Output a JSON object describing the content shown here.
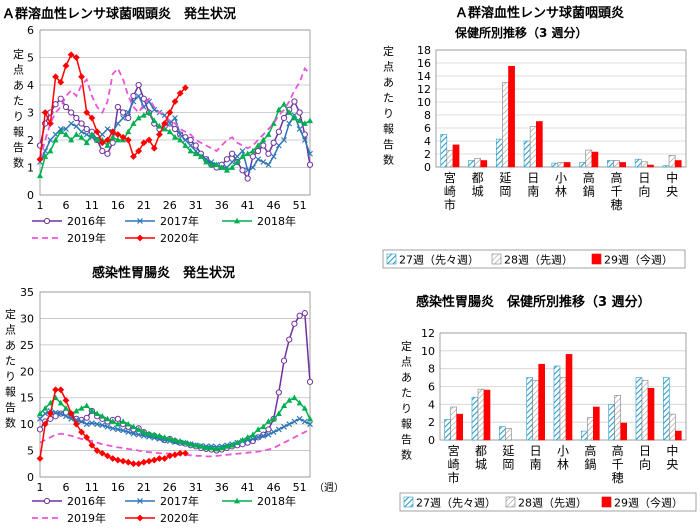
{
  "chart_data": [
    {
      "id": "strep_weekly",
      "type": "line",
      "title": "Ａ群溶血性レンサ球菌咽頭炎　発生状況",
      "ylabel": "定点あたり報告数",
      "xlabel": "",
      "x_ticks": [
        "1",
        "6",
        "11",
        "16",
        "21",
        "26",
        "31",
        "36",
        "41",
        "46",
        "51"
      ],
      "y_ticks": [
        "0",
        "1",
        "2",
        "3",
        "4",
        "5",
        "6"
      ],
      "ylim": [
        0,
        6
      ],
      "xlim": [
        1,
        53
      ],
      "grid": true,
      "legend_position": "bottom",
      "series": [
        {
          "name": "2016年",
          "color": "#7030A0",
          "style": "solid",
          "marker": "circle-open",
          "values": [
            1.8,
            2.6,
            3.0,
            3.3,
            3.5,
            3.2,
            3.0,
            2.8,
            2.6,
            2.4,
            2.3,
            2.0,
            1.6,
            1.5,
            1.9,
            3.2,
            3.0,
            2.8,
            3.6,
            4.0,
            3.5,
            3.0,
            2.6,
            2.4,
            2.5,
            2.6,
            2.4,
            2.2,
            2.1,
            2.0,
            1.8,
            1.5,
            1.3,
            1.1,
            1.0,
            1.1,
            1.3,
            1.5,
            1.2,
            0.9,
            0.6,
            1.4,
            1.6,
            1.8,
            1.5,
            1.9,
            2.3,
            2.8,
            3.1,
            3.4,
            3.0,
            2.2,
            1.1
          ]
        },
        {
          "name": "2017年",
          "color": "#2E75B6",
          "style": "solid",
          "marker": "x",
          "values": [
            1.2,
            1.6,
            2.0,
            2.2,
            2.4,
            2.4,
            2.6,
            2.5,
            2.3,
            2.2,
            2.1,
            2.0,
            2.2,
            2.4,
            2.3,
            2.6,
            2.8,
            3.0,
            3.4,
            3.6,
            3.2,
            3.4,
            3.1,
            3.0,
            2.9,
            2.6,
            2.8,
            2.2,
            2.0,
            1.8,
            1.6,
            1.4,
            1.3,
            1.2,
            1.1,
            1.0,
            1.0,
            1.2,
            1.4,
            1.6,
            0.9,
            1.0,
            1.3,
            1.2,
            1.1,
            1.4,
            1.8,
            2.0,
            2.6,
            2.9,
            2.4,
            2.0,
            1.5
          ]
        },
        {
          "name": "2018年",
          "color": "#00B050",
          "style": "solid",
          "marker": "triangle",
          "values": [
            0.7,
            1.4,
            1.6,
            2.0,
            2.3,
            2.2,
            2.0,
            2.2,
            2.1,
            1.9,
            2.2,
            2.0,
            2.0,
            1.8,
            2.1,
            2.0,
            2.0,
            2.3,
            2.6,
            2.8,
            2.9,
            3.0,
            2.7,
            2.5,
            2.4,
            2.3,
            2.1,
            2.0,
            1.8,
            1.6,
            1.5,
            1.4,
            1.2,
            1.1,
            1.1,
            1.0,
            0.9,
            1.0,
            1.2,
            1.4,
            1.5,
            1.6,
            1.8,
            2.0,
            2.2,
            2.6,
            3.1,
            3.3,
            3.0,
            2.8,
            2.7,
            2.6,
            2.7
          ]
        },
        {
          "name": "2019年",
          "color": "#E955D8",
          "style": "dashed",
          "marker": "none",
          "values": [
            1.3,
            2.0,
            2.6,
            3.0,
            3.2,
            3.6,
            3.8,
            3.6,
            4.0,
            4.2,
            3.6,
            3.2,
            3.0,
            3.4,
            4.4,
            4.6,
            4.2,
            3.6,
            3.2,
            3.0,
            3.3,
            3.5,
            3.2,
            3.0,
            2.9,
            2.7,
            2.6,
            2.4,
            2.3,
            2.2,
            2.0,
            1.9,
            1.8,
            1.7,
            1.6,
            1.8,
            2.0,
            2.1,
            1.9,
            1.8,
            1.7,
            1.8,
            2.0,
            2.2,
            2.4,
            2.6,
            2.9,
            3.1,
            3.4,
            3.8,
            4.1,
            4.6,
            4.4
          ]
        },
        {
          "name": "2020年",
          "color": "#FF0000",
          "style": "solid",
          "marker": "diamond",
          "values": [
            1.3,
            3.0,
            2.6,
            4.3,
            4.1,
            4.7,
            5.1,
            5.0,
            4.3,
            3.0,
            2.8,
            2.3,
            1.9,
            2.0,
            2.3,
            2.2,
            2.1,
            2.0,
            1.4,
            1.6,
            1.9,
            2.0,
            1.7,
            2.2,
            2.6,
            3.0,
            3.4,
            3.7,
            3.9
          ]
        }
      ]
    },
    {
      "id": "strep_district",
      "type": "bar",
      "title_line1": "Ａ群溶血性レンサ球菌咽頭炎",
      "title_line2": "保健所別推移（3 週分）",
      "ylabel": "定点あたり報告数",
      "ylim": [
        0,
        18
      ],
      "y_ticks": [
        "0",
        "2",
        "4",
        "6",
        "8",
        "10",
        "12",
        "14",
        "16",
        "18"
      ],
      "grid": true,
      "legend_position": "bottom",
      "categories": [
        "宮崎市",
        "都城",
        "延岡",
        "日南",
        "小林",
        "高鍋",
        "高千穂",
        "日向",
        "中央"
      ],
      "series": [
        {
          "name": "27週（先々週）",
          "fill": "hatch-blue",
          "values": [
            5.0,
            1.0,
            4.3,
            4.0,
            0.6,
            0.7,
            1.0,
            1.2,
            0.2
          ]
        },
        {
          "name": "28週（先週）",
          "fill": "hatch-gray",
          "values": [
            2.5,
            1.3,
            13.0,
            6.2,
            0.7,
            2.6,
            1.0,
            0.8,
            1.8
          ]
        },
        {
          "name": "29週（今週）",
          "fill": "#FF0000",
          "values": [
            3.4,
            1.0,
            15.5,
            7.0,
            0.7,
            2.3,
            0.7,
            0.3,
            1.0
          ]
        }
      ]
    },
    {
      "id": "gastro_weekly",
      "type": "line",
      "title": "感染性胃腸炎　発生状況",
      "ylabel": "定点あたり報告数",
      "xlabel": "（週）",
      "x_ticks": [
        "1",
        "6",
        "11",
        "16",
        "21",
        "26",
        "31",
        "36",
        "41",
        "46",
        "51"
      ],
      "y_ticks": [
        "0",
        "5",
        "10",
        "15",
        "20",
        "25",
        "30",
        "35"
      ],
      "ylim": [
        0,
        35
      ],
      "xlim": [
        1,
        53
      ],
      "grid": true,
      "legend_position": "bottom",
      "series": [
        {
          "name": "2016年",
          "color": "#7030A0",
          "style": "solid",
          "marker": "circle-open",
          "values": [
            9.0,
            10.5,
            11.0,
            11.5,
            12.0,
            12.2,
            11.8,
            11.0,
            10.8,
            11.2,
            12.5,
            11.5,
            11.0,
            10.5,
            10.8,
            11.0,
            10.0,
            9.5,
            9.0,
            9.2,
            8.5,
            8.0,
            7.8,
            7.5,
            7.0,
            7.2,
            6.8,
            6.5,
            6.3,
            6.0,
            5.8,
            5.5,
            5.3,
            5.2,
            5.0,
            5.2,
            5.5,
            5.8,
            6.0,
            6.2,
            6.5,
            6.8,
            7.5,
            8.0,
            9.0,
            11.0,
            16.0,
            22.0,
            26.0,
            29.0,
            30.5,
            31.0,
            18.0
          ]
        },
        {
          "name": "2017年",
          "color": "#2E75B6",
          "style": "solid",
          "marker": "x",
          "values": [
            11.0,
            12.0,
            12.5,
            12.2,
            12.0,
            11.5,
            11.0,
            10.8,
            10.5,
            10.0,
            10.2,
            10.0,
            9.8,
            9.5,
            9.2,
            9.0,
            8.8,
            8.5,
            8.2,
            8.0,
            7.8,
            7.6,
            7.4,
            7.2,
            7.0,
            6.8,
            6.6,
            6.5,
            6.4,
            6.2,
            6.0,
            5.9,
            5.8,
            5.8,
            5.7,
            5.8,
            6.0,
            6.2,
            6.5,
            6.8,
            7.0,
            7.2,
            7.5,
            7.8,
            8.0,
            8.5,
            9.0,
            9.5,
            10.0,
            10.5,
            11.0,
            10.5,
            10.0
          ]
        },
        {
          "name": "2018年",
          "color": "#00B050",
          "style": "solid",
          "marker": "triangle",
          "values": [
            12.0,
            13.0,
            14.0,
            15.0,
            14.0,
            13.0,
            12.0,
            12.5,
            13.0,
            13.5,
            12.5,
            12.0,
            11.5,
            11.0,
            10.5,
            10.0,
            10.5,
            10.0,
            9.5,
            9.0,
            8.5,
            8.2,
            8.0,
            7.8,
            7.5,
            7.2,
            7.0,
            6.8,
            6.5,
            6.2,
            6.0,
            5.8,
            5.5,
            5.5,
            5.3,
            5.5,
            5.8,
            6.0,
            6.5,
            7.0,
            7.5,
            8.0,
            9.0,
            9.5,
            10.5,
            11.0,
            12.0,
            13.5,
            14.5,
            15.0,
            14.0,
            13.0,
            11.0
          ]
        },
        {
          "name": "2019年",
          "color": "#E955D8",
          "style": "dashed",
          "marker": "none",
          "values": [
            6.5,
            7.0,
            7.5,
            8.0,
            8.2,
            8.0,
            7.8,
            7.5,
            7.2,
            7.0,
            6.8,
            6.5,
            6.2,
            6.0,
            5.8,
            5.6,
            5.5,
            5.3,
            5.2,
            5.0,
            4.8,
            4.7,
            4.6,
            4.5,
            4.5,
            4.4,
            4.3,
            4.2,
            4.2,
            4.1,
            4.0,
            4.0,
            3.9,
            3.9,
            4.0,
            4.1,
            4.2,
            4.3,
            4.4,
            4.5,
            4.6,
            4.7,
            4.8,
            5.0,
            5.2,
            5.5,
            6.0,
            6.5,
            7.0,
            7.5,
            8.0,
            8.5,
            9.0
          ]
        },
        {
          "name": "2020年",
          "color": "#FF0000",
          "style": "solid",
          "marker": "diamond",
          "values": [
            3.5,
            10.0,
            12.0,
            16.5,
            16.5,
            14.5,
            12.0,
            10.0,
            8.5,
            7.5,
            6.0,
            5.0,
            4.5,
            4.0,
            3.5,
            3.2,
            3.0,
            2.8,
            2.5,
            2.5,
            2.8,
            3.0,
            3.2,
            3.5,
            3.5,
            4.0,
            4.2,
            4.5,
            4.5
          ]
        }
      ]
    },
    {
      "id": "gastro_district",
      "type": "bar",
      "title": "感染性胃腸炎　保健所別推移（3 週分）",
      "ylabel": "定点あたり報告数",
      "ylim": [
        0,
        12
      ],
      "y_ticks": [
        "0",
        "2",
        "4",
        "6",
        "8",
        "10",
        "12"
      ],
      "grid": true,
      "legend_position": "bottom",
      "categories": [
        "宮崎市",
        "都城",
        "延岡",
        "日南",
        "小林",
        "高鍋",
        "高千穂",
        "日向",
        "中央"
      ],
      "series": [
        {
          "name": "27週（先々週）",
          "fill": "hatch-blue",
          "values": [
            2.3,
            4.8,
            1.5,
            7.0,
            8.3,
            1.0,
            4.0,
            7.0,
            7.0
          ]
        },
        {
          "name": "28週（先週）",
          "fill": "hatch-gray",
          "values": [
            3.7,
            5.7,
            1.3,
            6.7,
            7.0,
            2.5,
            5.0,
            6.7,
            2.9
          ]
        },
        {
          "name": "29週（今週）",
          "fill": "#FF0000",
          "values": [
            2.9,
            5.6,
            0.0,
            8.5,
            9.6,
            3.7,
            1.9,
            5.8,
            1.0
          ]
        }
      ]
    }
  ]
}
